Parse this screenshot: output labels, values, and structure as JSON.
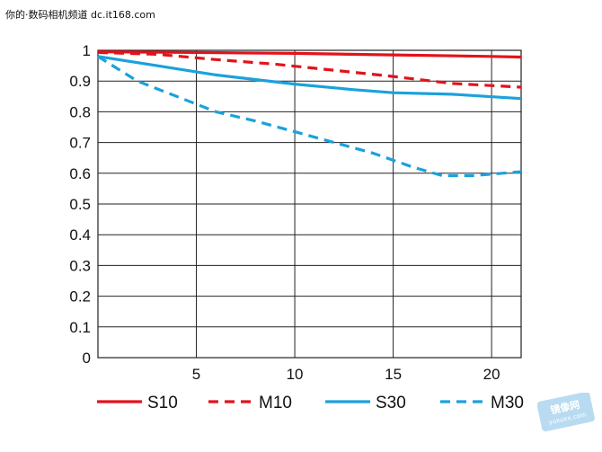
{
  "watermark": {
    "top_text": "你的·数码相机频道 dc.it168.com",
    "corner_stamp": "镜像网 yuxuxx.com"
  },
  "colors": {
    "red": "#e3121b",
    "blue": "#1ba1dc",
    "grid": "#222222",
    "axis_text": "#111111"
  },
  "chart_data": {
    "type": "line",
    "title": "",
    "xlabel": "",
    "ylabel": "",
    "xlim": [
      0,
      21.5
    ],
    "ylim": [
      0,
      1
    ],
    "x_ticks": [
      5,
      10,
      15,
      20
    ],
    "y_ticks": [
      0,
      0.1,
      0.2,
      0.3,
      0.4,
      0.5,
      0.6,
      0.7,
      0.8,
      0.9,
      1
    ],
    "y_tick_labels": [
      "0",
      "0.1",
      "0.2",
      "0.3",
      "0.4",
      "0.5",
      "0.6",
      "0.7",
      "0.8",
      "0.9",
      "1"
    ],
    "x_tick_labels": [
      "5",
      "10",
      "15",
      "20"
    ],
    "grid": true,
    "legend_position": "bottom",
    "series": [
      {
        "name": "S10",
        "color": "#e3121b",
        "dash": "solid",
        "x": [
          0,
          5,
          10,
          15,
          20,
          21.5
        ],
        "y": [
          0.995,
          0.993,
          0.99,
          0.985,
          0.98,
          0.978
        ]
      },
      {
        "name": "M10",
        "color": "#e3121b",
        "dash": "dashed",
        "x": [
          0,
          3,
          6,
          9,
          12,
          15,
          18,
          21.5
        ],
        "y": [
          0.993,
          0.987,
          0.97,
          0.955,
          0.935,
          0.915,
          0.892,
          0.88
        ]
      },
      {
        "name": "S30",
        "color": "#1ba1dc",
        "dash": "solid",
        "x": [
          0,
          3,
          6,
          10,
          13,
          15,
          18,
          21.5
        ],
        "y": [
          0.98,
          0.95,
          0.92,
          0.89,
          0.872,
          0.862,
          0.857,
          0.843
        ]
      },
      {
        "name": "M30",
        "color": "#1ba1dc",
        "dash": "dashed",
        "x": [
          0,
          2,
          4,
          6,
          8,
          10,
          12,
          14,
          16,
          17.5,
          19,
          21.5
        ],
        "y": [
          0.98,
          0.9,
          0.85,
          0.8,
          0.77,
          0.735,
          0.7,
          0.665,
          0.62,
          0.592,
          0.592,
          0.605
        ]
      }
    ]
  }
}
